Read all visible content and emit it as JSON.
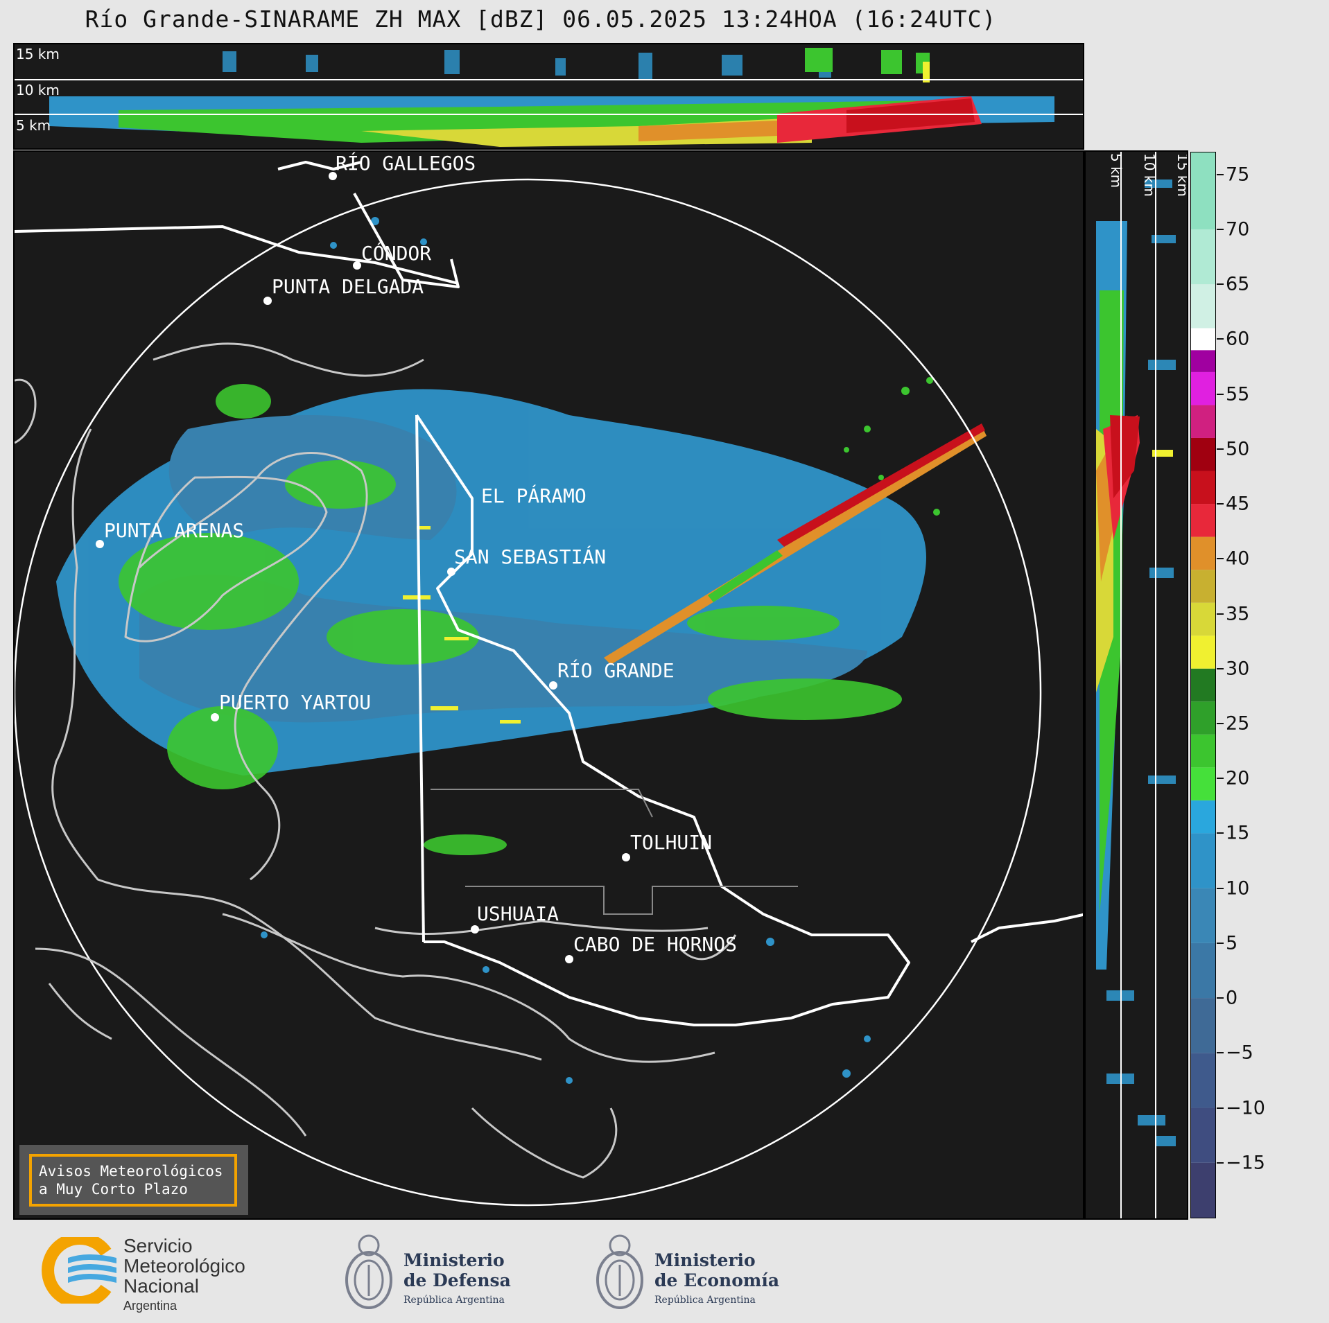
{
  "title": "Río Grande-SINARAME ZH MAX [dBZ] 06.05.2025 13:24HOA (16:24UTC)",
  "top_panel": {
    "km_labels": [
      "15 km",
      "10 km",
      "5 km"
    ]
  },
  "side_panel": {
    "km_labels": [
      "5 km",
      "10 km",
      "15 km"
    ]
  },
  "colorbar": {
    "unit": "dBZ",
    "ticks": [
      "75",
      "70",
      "65",
      "60",
      "55",
      "50",
      "45",
      "40",
      "35",
      "30",
      "25",
      "20",
      "15",
      "10",
      "5",
      "0",
      "−5",
      "−10",
      "−15"
    ],
    "range": [
      -20,
      77
    ],
    "bands": [
      {
        "from": -20,
        "to": -15,
        "color": "#3d3f6e"
      },
      {
        "from": -15,
        "to": -10,
        "color": "#3f4d80"
      },
      {
        "from": -10,
        "to": -5,
        "color": "#3f5a8c"
      },
      {
        "from": -5,
        "to": 0,
        "color": "#3f6a96"
      },
      {
        "from": 0,
        "to": 5,
        "color": "#3b78a6"
      },
      {
        "from": 5,
        "to": 10,
        "color": "#3a87b6"
      },
      {
        "from": 10,
        "to": 15,
        "color": "#2f93c8"
      },
      {
        "from": 15,
        "to": 18,
        "color": "#2aa7dd"
      },
      {
        "from": 18,
        "to": 21,
        "color": "#45e03a"
      },
      {
        "from": 21,
        "to": 24,
        "color": "#3cc52f"
      },
      {
        "from": 24,
        "to": 27,
        "color": "#2fa02a"
      },
      {
        "from": 27,
        "to": 30,
        "color": "#227a22"
      },
      {
        "from": 30,
        "to": 33,
        "color": "#f0f030"
      },
      {
        "from": 33,
        "to": 36,
        "color": "#d8d838"
      },
      {
        "from": 36,
        "to": 39,
        "color": "#c8b030"
      },
      {
        "from": 39,
        "to": 42,
        "color": "#e0902a"
      },
      {
        "from": 42,
        "to": 45,
        "color": "#e8283a"
      },
      {
        "from": 45,
        "to": 48,
        "color": "#c8101c"
      },
      {
        "from": 48,
        "to": 51,
        "color": "#a00010"
      },
      {
        "from": 51,
        "to": 54,
        "color": "#d02080"
      },
      {
        "from": 54,
        "to": 57,
        "color": "#e020e0"
      },
      {
        "from": 57,
        "to": 59,
        "color": "#a000a0"
      },
      {
        "from": 59,
        "to": 61,
        "color": "#ffffff"
      },
      {
        "from": 61,
        "to": 65,
        "color": "#d0f0e4"
      },
      {
        "from": 65,
        "to": 70,
        "color": "#b0ead4"
      },
      {
        "from": 70,
        "to": 77,
        "color": "#8ee0c0"
      }
    ]
  },
  "cities": [
    {
      "name": "RÍO GALLEGOS"
    },
    {
      "name": "CÓNDOR"
    },
    {
      "name": "PUNTA DELGADA"
    },
    {
      "name": "EL PÁRAMO"
    },
    {
      "name": "PUNTA ARENAS"
    },
    {
      "name": "SAN SEBASTIÁN"
    },
    {
      "name": "RÍO GRANDE"
    },
    {
      "name": "PUERTO YARTOU"
    },
    {
      "name": "TOLHUIN"
    },
    {
      "name": "USHUAIA"
    },
    {
      "name": "CABO DE HORNOS"
    }
  ],
  "warning_box": {
    "line1": "Avisos Meteorológicos",
    "line2": "a Muy Corto Plazo"
  },
  "logos": {
    "smn": {
      "line1": "Servicio",
      "line2": "Meteorológico",
      "line3": "Nacional",
      "line4": "Argentina"
    },
    "defensa": {
      "line1": "Ministerio",
      "line2": "de Defensa",
      "line3": "República Argentina"
    },
    "economia": {
      "line1": "Ministerio",
      "line2": "de Economía",
      "line3": "República Argentina"
    }
  }
}
